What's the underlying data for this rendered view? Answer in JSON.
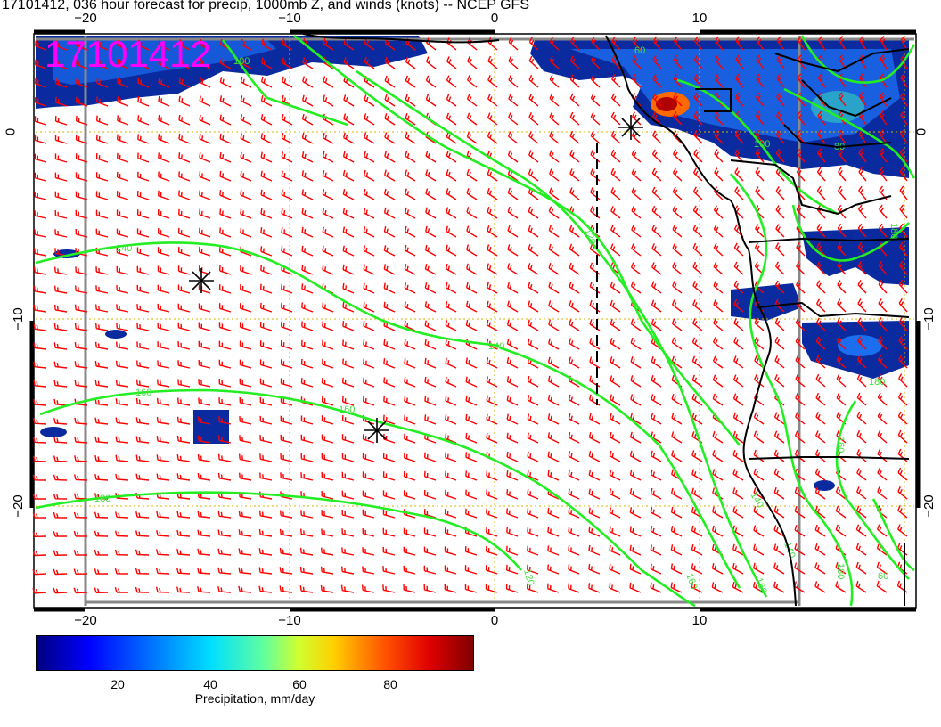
{
  "title": "17101412, 036 hour forecast for precip, 1000mb Z, and winds (knots) -- NCEP GFS",
  "stamp": "17101412",
  "axes": {
    "top_ticks": [
      "−20",
      "−10",
      "0",
      "10"
    ],
    "bottom_ticks": [
      "−20",
      "−10",
      "0",
      "10"
    ],
    "left_ticks": [
      "0",
      "−10",
      "−20"
    ],
    "right_ticks": [
      "0",
      "−10",
      "−20"
    ]
  },
  "colorbar": {
    "ticks": [
      "20",
      "40",
      "60",
      "80"
    ],
    "label": "Precipitation, mm/day"
  },
  "contour_labels": [
    "140",
    "140",
    "140",
    "160",
    "160",
    "180",
    "120",
    "120",
    "100",
    "160",
    "160",
    "140",
    "180",
    "160",
    "180",
    "180",
    "100",
    "80",
    "60",
    "60"
  ],
  "colors": {
    "wind_barbs": "#ff0000",
    "contours": "#22ee22",
    "stamp": "#ff00ff",
    "coastline": "#000000"
  }
}
